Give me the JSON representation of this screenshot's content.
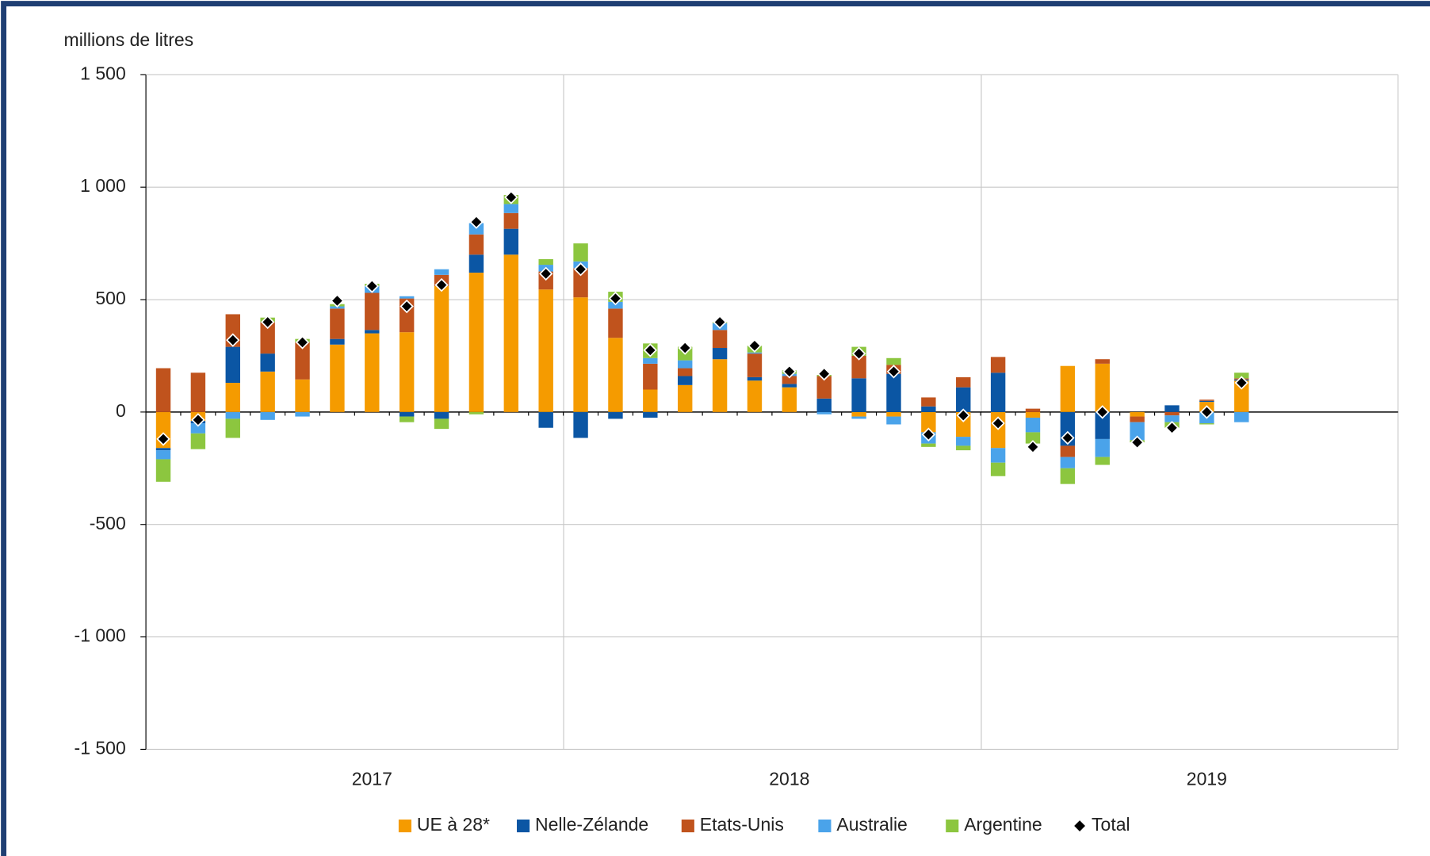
{
  "chart_data": {
    "type": "bar",
    "stacked": true,
    "y_axis_label": "millions de litres",
    "categories": [
      null,
      null,
      null,
      null,
      null,
      null,
      "2017",
      null,
      null,
      null,
      null,
      null,
      null,
      null,
      null,
      null,
      null,
      null,
      "2018",
      null,
      null,
      null,
      null,
      null,
      null,
      null,
      null,
      null,
      null,
      null,
      "2019",
      null
    ],
    "ylim": [
      -1500,
      1500
    ],
    "yticks": [
      {
        "value": -1500,
        "label": "-1 500"
      },
      {
        "value": -1000,
        "label": "-1 000"
      },
      -500,
      0,
      500,
      {
        "value": 1000,
        "label": "1 000"
      },
      {
        "value": 1500,
        "label": "1 500"
      }
    ],
    "grid": true,
    "legend": "bottom",
    "series": [
      {
        "name": "UE à 28*",
        "color": "#f59b00",
        "values": [
          -160,
          -40,
          130,
          180,
          145,
          300,
          350,
          355,
          560,
          620,
          700,
          545,
          510,
          330,
          100,
          120,
          235,
          140,
          110,
          0,
          -20,
          -20,
          -90,
          -110,
          -160,
          -25,
          205,
          215,
          -20,
          0,
          45,
          140
        ]
      },
      {
        "name": "Nelle-Zélande",
        "color": "#0b56a4",
        "values": [
          -10,
          -10,
          160,
          80,
          0,
          25,
          15,
          -20,
          -30,
          80,
          115,
          -70,
          -115,
          -30,
          -25,
          40,
          50,
          15,
          15,
          60,
          150,
          170,
          25,
          110,
          175,
          0,
          -150,
          -120,
          0,
          30,
          5,
          5
        ]
      },
      {
        "name": "Etats-Unis",
        "color": "#c0531d",
        "values": [
          195,
          175,
          145,
          140,
          165,
          135,
          165,
          150,
          50,
          90,
          70,
          80,
          130,
          130,
          115,
          35,
          80,
          105,
          35,
          100,
          100,
          40,
          40,
          45,
          70,
          15,
          -50,
          20,
          -25,
          -15,
          5,
          5
        ]
      },
      {
        "name": "Australie",
        "color": "#4aa3ea",
        "values": [
          -40,
          -45,
          -30,
          -35,
          -20,
          10,
          30,
          10,
          25,
          50,
          40,
          30,
          30,
          30,
          25,
          35,
          30,
          5,
          10,
          -10,
          -10,
          -35,
          -50,
          -40,
          -65,
          -65,
          -50,
          -80,
          -80,
          -30,
          -50,
          -45
        ]
      },
      {
        "name": "Argentine",
        "color": "#8cc63f",
        "values": [
          -100,
          -70,
          -85,
          20,
          15,
          10,
          10,
          -25,
          -45,
          -10,
          40,
          25,
          80,
          45,
          65,
          60,
          5,
          30,
          15,
          5,
          40,
          30,
          -15,
          -20,
          -60,
          -50,
          -70,
          -35,
          -10,
          -25,
          -5,
          25
        ]
      },
      {
        "name": "Total",
        "type": "scatter",
        "color": "#000000",
        "values": [
          -120,
          -35,
          320,
          400,
          310,
          495,
          560,
          470,
          565,
          845,
          955,
          615,
          635,
          505,
          275,
          285,
          400,
          295,
          180,
          170,
          260,
          180,
          -100,
          -15,
          -50,
          -155,
          -115,
          0,
          -135,
          -70,
          0,
          130
        ]
      }
    ]
  }
}
